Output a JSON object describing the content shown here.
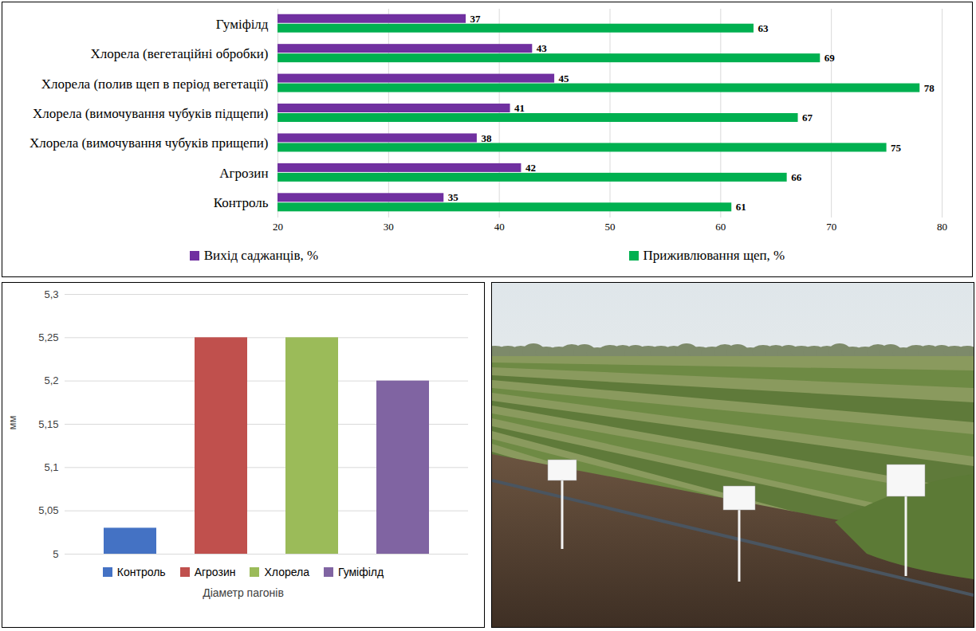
{
  "chart_data": [
    {
      "type": "bar",
      "orientation": "horizontal",
      "categories": [
        "Гуміфілд",
        "Хлорела (вегетаційні обробки)",
        "Хлорела (полив щеп в період вегетації)",
        "Хлорела (вимочування чубуків підщепи)",
        "Хлорела (вимочування чубуків прищепи)",
        "Агрозин",
        "Контроль"
      ],
      "series": [
        {
          "name": "Вихід саджанців, %",
          "color": "#7030a0",
          "values": [
            37,
            43,
            45,
            41,
            38,
            42,
            35
          ]
        },
        {
          "name": "Приживлювання щеп, %",
          "color": "#00b050",
          "values": [
            63,
            69,
            78,
            67,
            75,
            66,
            61
          ]
        }
      ],
      "xlim": [
        20,
        80
      ],
      "xticks": [
        20,
        30,
        40,
        50,
        60,
        70,
        80
      ],
      "grid": true,
      "data_labels": true,
      "legend": "bottom"
    },
    {
      "type": "bar",
      "categories": [
        "Контроль",
        "Агрозин",
        "Хлорела",
        "Гуміфілд"
      ],
      "values": [
        5.03,
        5.25,
        5.25,
        5.2
      ],
      "colors": [
        "#4472c4",
        "#c0504d",
        "#9bbb59",
        "#8064a2"
      ],
      "xlabel": "Діаметр пагонів",
      "ylabel": "мм",
      "ylim": [
        5,
        5.3
      ],
      "yticks": [
        5,
        {
          "value": 5.05,
          "label": "5,05"
        },
        {
          "value": 5.1,
          "label": "5,1"
        },
        {
          "value": 5.15,
          "label": "5,15"
        },
        {
          "value": 5.2,
          "label": "5,2"
        },
        {
          "value": 5.25,
          "label": "5,25"
        },
        {
          "value": 5.3,
          "label": "5,3"
        }
      ],
      "grid": true,
      "legend": "bottom",
      "tick_labels": "y"
    }
  ]
}
